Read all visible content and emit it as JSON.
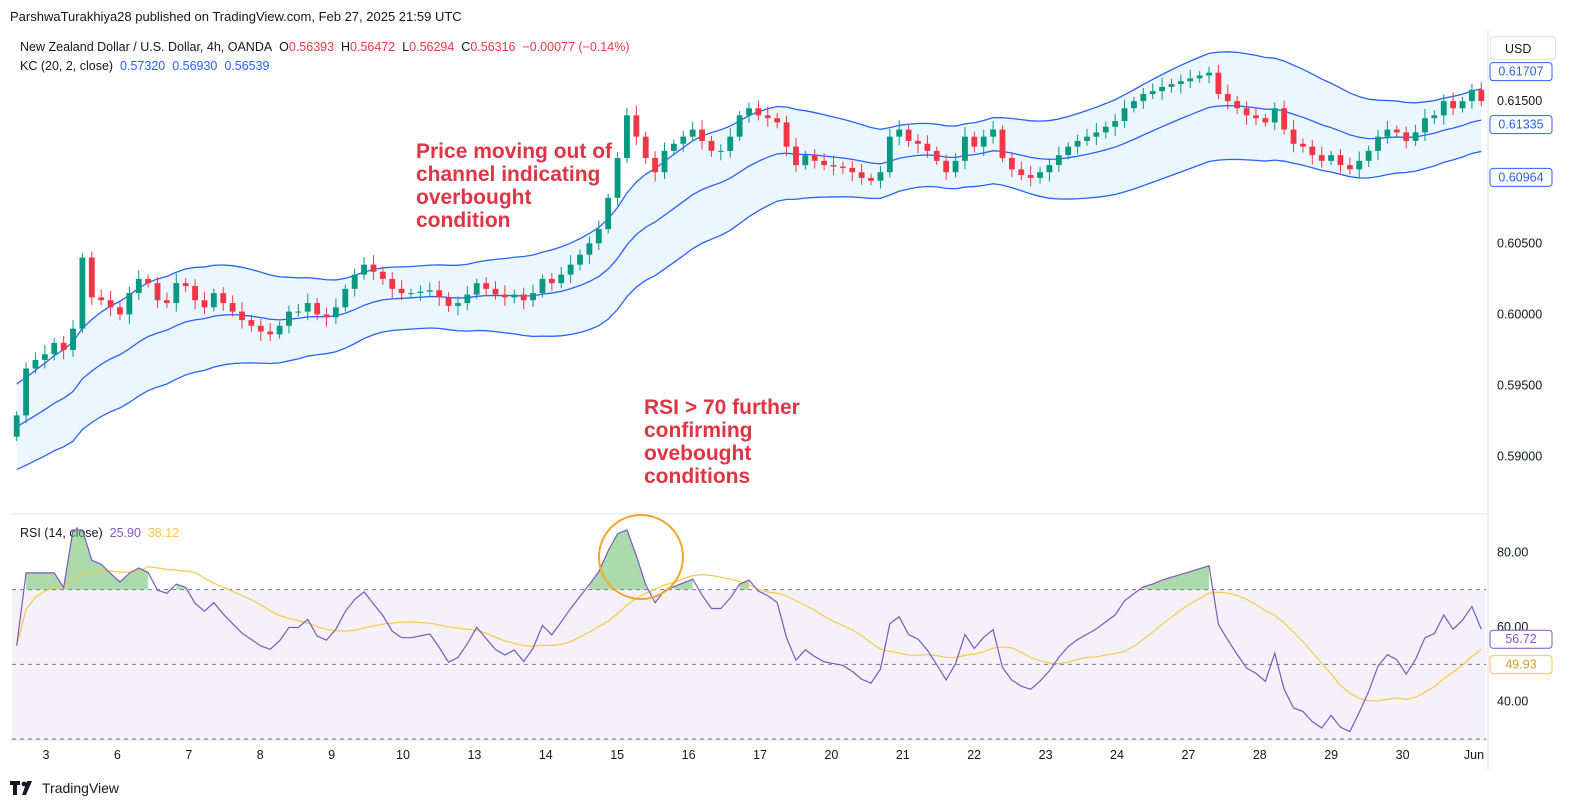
{
  "header": {
    "publisher": "ParshwaTurakhiya28 published on TradingView.com, Feb 27, 2025 21:59 UTC"
  },
  "price_legend": {
    "symbol": "New Zealand Dollar / U.S. Dollar, 4h, OANDA",
    "o_label": "O",
    "o_value": "0.56393",
    "h_label": "H",
    "h_value": "0.56472",
    "l_label": "L",
    "l_value": "0.56294",
    "c_label": "C",
    "c_value": "0.56316",
    "change": "−0.00077 (−0.14%)"
  },
  "kc_legend": {
    "label": "KC (20, 2, close)",
    "upper": "0.57320",
    "mid": "0.56930",
    "lower": "0.56539"
  },
  "rsi_legend": {
    "label": "RSI (14, close)",
    "rsi": "25.90",
    "ma": "38.12"
  },
  "currency": "USD",
  "annotations": {
    "channel_note": [
      "Price moving out of",
      "channel indicating",
      "overbought",
      "condition"
    ],
    "rsi_note": [
      "RSI > 70 further",
      "confirming",
      "ovebought",
      "conditions"
    ]
  },
  "footer": {
    "brand": "TradingView"
  },
  "colors": {
    "up": "#089981",
    "down": "#f23645",
    "kc": "#2962ff",
    "channel_fill": "#e3f2fd",
    "rsi": "#7e57c2",
    "rsi_ma": "#f7c948",
    "rsi_band": "#ede7f6",
    "annotation": "#e03445",
    "circle": "#f5a623"
  },
  "chart_data": [
    {
      "type": "candlestick",
      "y_axis": {
        "ticks": [
          "0.59000",
          "0.59500",
          "0.60000",
          "0.60500",
          "0.61500"
        ],
        "range": [
          0.5866,
          0.62
        ]
      },
      "x_axis": {
        "ticks": [
          "3",
          "6",
          "7",
          "8",
          "9",
          "10",
          "13",
          "14",
          "15",
          "16",
          "17",
          "20",
          "21",
          "22",
          "23",
          "24",
          "27",
          "28",
          "29",
          "30",
          "Jun"
        ]
      },
      "price_labels": [
        {
          "value": "0.61707",
          "series": "kc_upper"
        },
        {
          "value": "0.61335",
          "series": "kc_mid"
        },
        {
          "value": "0.60964",
          "series": "kc_lower"
        }
      ],
      "candles_close": [
        0.5929,
        0.5962,
        0.5968,
        0.5972,
        0.598,
        0.5975,
        0.599,
        0.604,
        0.6012,
        0.601,
        0.6005,
        0.6,
        0.6015,
        0.6025,
        0.6022,
        0.601,
        0.6008,
        0.6022,
        0.602,
        0.601,
        0.6005,
        0.6015,
        0.6008,
        0.6002,
        0.5996,
        0.5992,
        0.5988,
        0.5986,
        0.5992,
        0.6002,
        0.6002,
        0.6008,
        0.6,
        0.5998,
        0.6005,
        0.6018,
        0.6028,
        0.6035,
        0.603,
        0.6025,
        0.6018,
        0.6015,
        0.6015,
        0.6016,
        0.6017,
        0.6012,
        0.6006,
        0.6008,
        0.6014,
        0.6022,
        0.6018,
        0.6014,
        0.6012,
        0.6014,
        0.601,
        0.6015,
        0.6025,
        0.6022,
        0.6028,
        0.6035,
        0.6042,
        0.605,
        0.606,
        0.6082,
        0.611,
        0.614,
        0.6125,
        0.611,
        0.61,
        0.6115,
        0.612,
        0.6125,
        0.613,
        0.6122,
        0.6115,
        0.6115,
        0.6125,
        0.614,
        0.6145,
        0.614,
        0.6138,
        0.6135,
        0.6118,
        0.6105,
        0.6112,
        0.6108,
        0.6105,
        0.6104,
        0.6103,
        0.61,
        0.6096,
        0.6094,
        0.61,
        0.6125,
        0.613,
        0.6122,
        0.612,
        0.6115,
        0.6108,
        0.61,
        0.6108,
        0.6125,
        0.6118,
        0.6125,
        0.613,
        0.611,
        0.6102,
        0.6098,
        0.6096,
        0.61,
        0.6105,
        0.6112,
        0.6118,
        0.6122,
        0.6125,
        0.6128,
        0.6132,
        0.6136,
        0.6145,
        0.615,
        0.6155,
        0.6157,
        0.616,
        0.6162,
        0.6164,
        0.6166,
        0.6168,
        0.617,
        0.6155,
        0.615,
        0.6145,
        0.614,
        0.6138,
        0.6135,
        0.6145,
        0.613,
        0.612,
        0.6118,
        0.6112,
        0.6108,
        0.6112,
        0.6105,
        0.6102,
        0.6108,
        0.6115,
        0.6125,
        0.613,
        0.6128,
        0.6122,
        0.6128,
        0.6138,
        0.614,
        0.615,
        0.6145,
        0.615,
        0.6158,
        0.615
      ]
    },
    {
      "type": "line",
      "y_axis": {
        "ticks": [
          "40.00",
          "60.00",
          "80.00"
        ],
        "range": [
          30,
          90
        ]
      },
      "price_labels": [
        {
          "value": "56.72",
          "series": "rsi"
        },
        {
          "value": "49.93",
          "series": "rsi_ma"
        }
      ],
      "levels": [
        70,
        50,
        30
      ]
    }
  ]
}
